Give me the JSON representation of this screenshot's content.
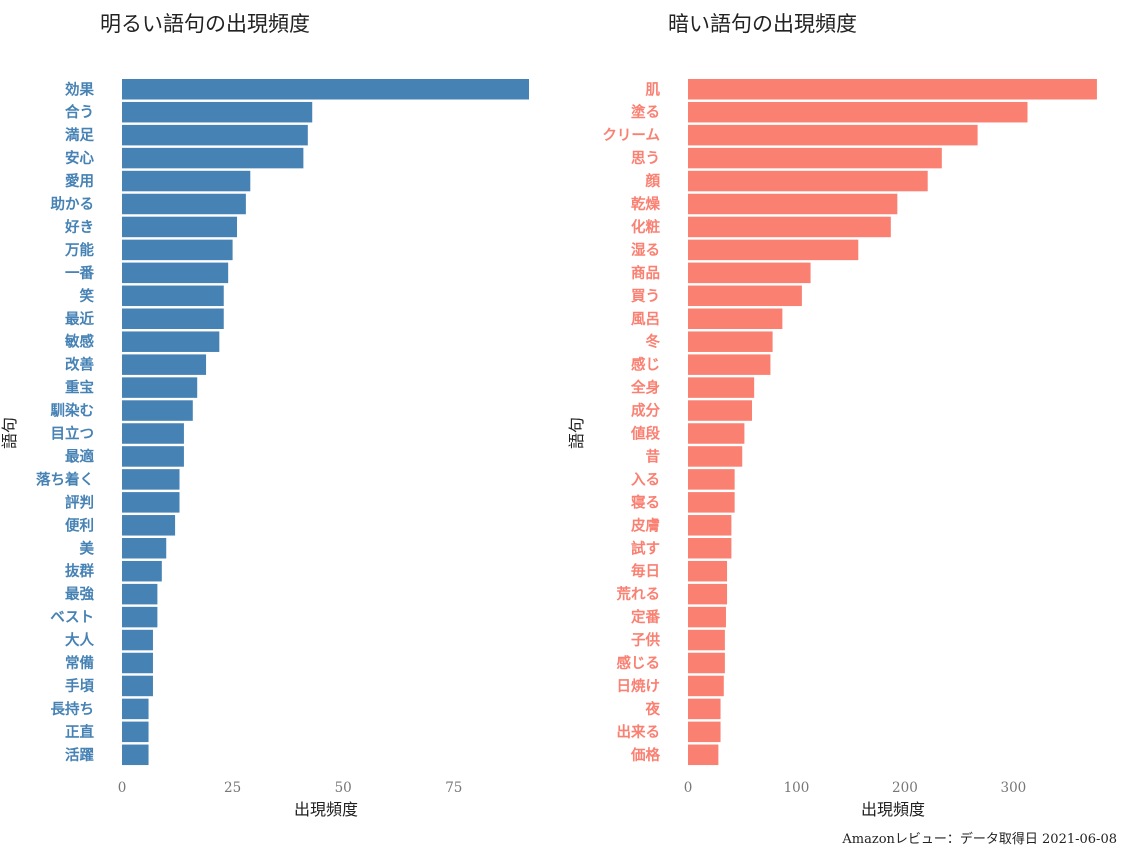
{
  "caption": "Amazonレビュー：データ取得日 2021-06-08",
  "chart_data": [
    {
      "type": "bar",
      "orientation": "horizontal",
      "title": "明るい語句の出現頻度",
      "xlabel": "出現頻度",
      "ylabel": "語句",
      "color": "#4682b4",
      "xlim": [
        0,
        92
      ],
      "xticks": [
        0,
        25,
        50,
        75
      ],
      "grid": false,
      "categories": [
        "効果",
        "合う",
        "満足",
        "安心",
        "愛用",
        "助かる",
        "好き",
        "万能",
        "一番",
        "笑",
        "最近",
        "敏感",
        "改善",
        "重宝",
        "馴染む",
        "目立つ",
        "最適",
        "落ち着く",
        "評判",
        "便利",
        "美",
        "抜群",
        "最強",
        "ベスト",
        "大人",
        "常備",
        "手頃",
        "長持ち",
        "正直",
        "活躍"
      ],
      "values": [
        92,
        43,
        42,
        41,
        29,
        28,
        26,
        25,
        24,
        23,
        23,
        22,
        19,
        17,
        16,
        14,
        14,
        13,
        13,
        12,
        10,
        9,
        8,
        8,
        7,
        7,
        7,
        6,
        6,
        6
      ]
    },
    {
      "type": "bar",
      "orientation": "horizontal",
      "title": "暗い語句の出現頻度",
      "xlabel": "出現頻度",
      "ylabel": "語句",
      "color": "#fa8072",
      "xlim": [
        0,
        378
      ],
      "xticks": [
        0,
        100,
        200,
        300
      ],
      "grid": false,
      "categories": [
        "肌",
        "塗る",
        "クリーム",
        "思う",
        "顔",
        "乾燥",
        "化粧",
        "湿る",
        "商品",
        "買う",
        "風呂",
        "冬",
        "感じ",
        "全身",
        "成分",
        "値段",
        "昔",
        "入る",
        "寝る",
        "皮膚",
        "試す",
        "毎日",
        "荒れる",
        "定番",
        "子供",
        "感じる",
        "日焼け",
        "夜",
        "出来る",
        "価格"
      ],
      "values": [
        377,
        313,
        267,
        234,
        221,
        193,
        187,
        157,
        113,
        105,
        87,
        78,
        76,
        61,
        59,
        52,
        50,
        43,
        43,
        40,
        40,
        36,
        36,
        35,
        34,
        34,
        33,
        30,
        30,
        28
      ]
    }
  ]
}
